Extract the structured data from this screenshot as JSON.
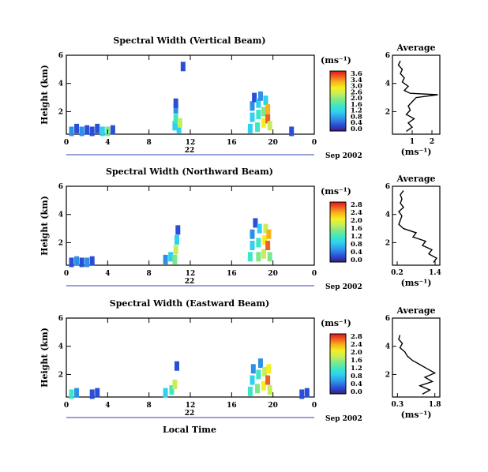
{
  "figure": {
    "xlabel": "Local Time",
    "date_label": "Sep 2002",
    "day_label": "22"
  },
  "colorbar_ticks_vertical": [
    "3.6",
    "3.4",
    "3.0",
    "2.6",
    "2.0",
    "1.6",
    "1.2",
    "0.8",
    "0.4",
    "0.0"
  ],
  "colorbar_ticks_tilted": [
    "2.8",
    "2.4",
    "2.0",
    "1.6",
    "1.2",
    "0.8",
    "0.4",
    "0.0"
  ],
  "colors": {
    "colormap": [
      "#3b1c7a",
      "#2a4fd6",
      "#2f8fe8",
      "#2fd0f0",
      "#3de7c5",
      "#7de88a",
      "#c6ee5a",
      "#f4f020",
      "#f7b21c",
      "#f06020",
      "#e1141c"
    ]
  },
  "chart_data": [
    {
      "type": "heatmap",
      "title": "Spectral Width (Vertical Beam)",
      "ylabel": "Height (km)",
      "xticks": [
        "0",
        "4",
        "8",
        "12",
        "16",
        "20",
        "0"
      ],
      "yticks": [
        "2",
        "4",
        "6"
      ],
      "xlim": [
        0,
        24
      ],
      "ylim": [
        0.4,
        6
      ],
      "colorbar_label": "(ms⁻¹)",
      "clim": [
        0,
        3.6
      ],
      "cells": [
        {
          "x": 0.5,
          "y": 0.6,
          "v": 0.8
        },
        {
          "x": 1.0,
          "y": 0.8,
          "v": 0.4
        },
        {
          "x": 1.5,
          "y": 0.6,
          "v": 0.6
        },
        {
          "x": 2.0,
          "y": 0.7,
          "v": 0.3
        },
        {
          "x": 2.5,
          "y": 0.6,
          "v": 0.5
        },
        {
          "x": 3.0,
          "y": 0.8,
          "v": 0.4
        },
        {
          "x": 3.5,
          "y": 0.6,
          "v": 0.9
        },
        {
          "x": 4.0,
          "y": 0.6,
          "v": 1.8
        },
        {
          "x": 4.5,
          "y": 0.7,
          "v": 0.5
        },
        {
          "x": 10.5,
          "y": 1.0,
          "v": 1.0
        },
        {
          "x": 10.6,
          "y": 1.5,
          "v": 1.4
        },
        {
          "x": 10.6,
          "y": 2.2,
          "v": 0.8
        },
        {
          "x": 10.6,
          "y": 2.6,
          "v": 0.3
        },
        {
          "x": 10.9,
          "y": 0.8,
          "v": 1.2
        },
        {
          "x": 11.0,
          "y": 1.2,
          "v": 2.0
        },
        {
          "x": 11.3,
          "y": 5.2,
          "v": 0.2
        },
        {
          "x": 17.8,
          "y": 0.8,
          "v": 1.2
        },
        {
          "x": 18.0,
          "y": 1.6,
          "v": 0.9
        },
        {
          "x": 18.0,
          "y": 2.4,
          "v": 0.6
        },
        {
          "x": 18.2,
          "y": 3.0,
          "v": 0.4
        },
        {
          "x": 18.5,
          "y": 0.9,
          "v": 1.6
        },
        {
          "x": 18.6,
          "y": 1.8,
          "v": 1.3
        },
        {
          "x": 18.6,
          "y": 2.6,
          "v": 1.0
        },
        {
          "x": 18.8,
          "y": 3.1,
          "v": 0.6
        },
        {
          "x": 19.1,
          "y": 1.2,
          "v": 2.4
        },
        {
          "x": 19.1,
          "y": 2.0,
          "v": 1.8
        },
        {
          "x": 19.3,
          "y": 2.8,
          "v": 1.2
        },
        {
          "x": 19.5,
          "y": 1.5,
          "v": 3.4
        },
        {
          "x": 19.5,
          "y": 2.2,
          "v": 3.0
        },
        {
          "x": 19.7,
          "y": 1.0,
          "v": 2.2
        },
        {
          "x": 21.8,
          "y": 0.6,
          "v": 0.3
        }
      ],
      "average_profile": {
        "title": "Average",
        "xlabel": "(ms⁻¹)",
        "xticks": [
          "1",
          "2"
        ],
        "xlim": [
          0,
          2.4
        ],
        "yticks": [
          "2",
          "4",
          "6"
        ],
        "ylim": [
          0.4,
          6
        ],
        "heights": [
          0.6,
          0.9,
          1.2,
          1.5,
          1.8,
          2.1,
          2.4,
          2.7,
          3.0,
          3.2,
          3.3,
          3.5,
          3.8,
          4.1,
          4.4,
          4.7,
          5.0,
          5.3,
          5.6
        ],
        "values": [
          0.7,
          1.0,
          0.8,
          1.1,
          0.7,
          0.9,
          0.8,
          1.0,
          1.2,
          2.3,
          0.9,
          0.6,
          0.8,
          0.5,
          0.6,
          0.4,
          0.5,
          0.3,
          0.4
        ]
      }
    },
    {
      "type": "heatmap",
      "title": "Spectral Width (Northward Beam)",
      "ylabel": "Height (km)",
      "xticks": [
        "0",
        "4",
        "8",
        "12",
        "16",
        "20",
        "0"
      ],
      "yticks": [
        "2",
        "4",
        "6"
      ],
      "xlim": [
        0,
        24
      ],
      "ylim": [
        0.4,
        6
      ],
      "colorbar_label": "(ms⁻¹)",
      "clim": [
        0,
        2.8
      ],
      "cells": [
        {
          "x": 0.5,
          "y": 0.6,
          "v": 0.4
        },
        {
          "x": 1.0,
          "y": 0.7,
          "v": 0.6
        },
        {
          "x": 1.5,
          "y": 0.6,
          "v": 0.3
        },
        {
          "x": 2.0,
          "y": 0.6,
          "v": 0.5
        },
        {
          "x": 2.5,
          "y": 0.7,
          "v": 0.4
        },
        {
          "x": 9.6,
          "y": 0.8,
          "v": 0.6
        },
        {
          "x": 10.1,
          "y": 1.0,
          "v": 0.9
        },
        {
          "x": 10.5,
          "y": 0.8,
          "v": 1.4
        },
        {
          "x": 10.6,
          "y": 1.5,
          "v": 1.8
        },
        {
          "x": 10.7,
          "y": 2.2,
          "v": 0.9
        },
        {
          "x": 10.8,
          "y": 2.9,
          "v": 0.4
        },
        {
          "x": 17.8,
          "y": 1.0,
          "v": 1.0
        },
        {
          "x": 18.0,
          "y": 1.8,
          "v": 0.8
        },
        {
          "x": 18.0,
          "y": 2.6,
          "v": 0.5
        },
        {
          "x": 18.3,
          "y": 3.4,
          "v": 0.4
        },
        {
          "x": 18.6,
          "y": 1.0,
          "v": 1.4
        },
        {
          "x": 18.6,
          "y": 2.0,
          "v": 1.2
        },
        {
          "x": 18.7,
          "y": 3.0,
          "v": 0.8
        },
        {
          "x": 19.1,
          "y": 1.2,
          "v": 1.8
        },
        {
          "x": 19.2,
          "y": 2.2,
          "v": 2.0
        },
        {
          "x": 19.3,
          "y": 3.0,
          "v": 1.6
        },
        {
          "x": 19.5,
          "y": 1.8,
          "v": 2.4
        },
        {
          "x": 19.6,
          "y": 2.6,
          "v": 2.1
        },
        {
          "x": 19.7,
          "y": 1.0,
          "v": 1.5
        }
      ],
      "average_profile": {
        "title": "Average",
        "xlabel": "(ms⁻¹)",
        "xticks": [
          "0.2",
          "1.4"
        ],
        "xlim": [
          0.05,
          1.55
        ],
        "yticks": [
          "2",
          "4",
          "6"
        ],
        "ylim": [
          0.4,
          6
        ],
        "heights": [
          0.6,
          0.9,
          1.2,
          1.5,
          1.8,
          2.1,
          2.4,
          2.7,
          3.0,
          3.3,
          3.6,
          3.9,
          4.2,
          4.5,
          4.8,
          5.1,
          5.4,
          5.7
        ],
        "values": [
          1.35,
          1.45,
          1.2,
          1.3,
          1.0,
          1.1,
          0.7,
          0.8,
          0.4,
          0.25,
          0.3,
          0.35,
          0.25,
          0.4,
          0.3,
          0.35,
          0.3,
          0.4
        ]
      }
    },
    {
      "type": "heatmap",
      "title": "Spectral Width (Eastward Beam)",
      "ylabel": "Height (km)",
      "xticks": [
        "0",
        "4",
        "8",
        "12",
        "16",
        "20",
        "0"
      ],
      "yticks": [
        "2",
        "4",
        "6"
      ],
      "xlim": [
        0,
        24
      ],
      "ylim": [
        0.4,
        6
      ],
      "colorbar_label": "(ms⁻¹)",
      "clim": [
        0,
        2.8
      ],
      "cells": [
        {
          "x": 0.5,
          "y": 0.6,
          "v": 1.0
        },
        {
          "x": 1.0,
          "y": 0.7,
          "v": 0.5
        },
        {
          "x": 2.5,
          "y": 0.6,
          "v": 0.4
        },
        {
          "x": 3.0,
          "y": 0.7,
          "v": 0.3
        },
        {
          "x": 9.6,
          "y": 0.7,
          "v": 0.8
        },
        {
          "x": 10.2,
          "y": 0.9,
          "v": 1.2
        },
        {
          "x": 10.5,
          "y": 1.3,
          "v": 1.6
        },
        {
          "x": 10.7,
          "y": 2.6,
          "v": 0.3
        },
        {
          "x": 17.8,
          "y": 0.8,
          "v": 1.0
        },
        {
          "x": 18.0,
          "y": 1.6,
          "v": 0.8
        },
        {
          "x": 18.1,
          "y": 2.4,
          "v": 0.5
        },
        {
          "x": 18.5,
          "y": 1.0,
          "v": 1.3
        },
        {
          "x": 18.6,
          "y": 2.0,
          "v": 1.1
        },
        {
          "x": 18.8,
          "y": 2.8,
          "v": 0.6
        },
        {
          "x": 19.1,
          "y": 1.2,
          "v": 2.0
        },
        {
          "x": 19.2,
          "y": 2.2,
          "v": 1.7
        },
        {
          "x": 19.5,
          "y": 1.6,
          "v": 2.6
        },
        {
          "x": 19.6,
          "y": 2.4,
          "v": 2.0
        },
        {
          "x": 19.7,
          "y": 0.9,
          "v": 1.6
        },
        {
          "x": 22.8,
          "y": 0.6,
          "v": 0.4
        },
        {
          "x": 23.3,
          "y": 0.7,
          "v": 0.3
        }
      ],
      "average_profile": {
        "title": "Average",
        "xlabel": "(ms⁻¹)",
        "xticks": [
          "0.3",
          "1.8"
        ],
        "xlim": [
          0.1,
          2.0
        ],
        "yticks": [
          "2",
          "4",
          "6"
        ],
        "ylim": [
          0.4,
          6
        ],
        "heights": [
          0.6,
          0.9,
          1.2,
          1.5,
          1.8,
          2.1,
          2.4,
          2.7,
          3.0,
          3.3,
          3.6,
          3.9,
          4.2,
          4.5,
          4.8
        ],
        "values": [
          1.3,
          1.6,
          1.2,
          1.7,
          1.4,
          1.8,
          1.5,
          1.2,
          0.9,
          0.7,
          0.6,
          0.4,
          0.5,
          0.35,
          0.4
        ]
      }
    }
  ]
}
